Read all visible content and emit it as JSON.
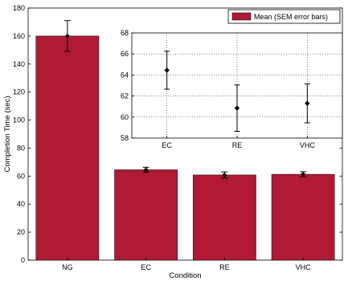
{
  "chart_data": [
    {
      "type": "bar",
      "categories": [
        "NG",
        "EC",
        "RE",
        "VHC"
      ],
      "series": [
        {
          "name": "Mean (SEM error bars)",
          "values": [
            160,
            64.5,
            60.8,
            61.3
          ],
          "error": [
            11,
            1.8,
            2.2,
            1.8
          ]
        }
      ],
      "xlabel": "Condition",
      "ylabel": "Completion Time (sec)",
      "ylim": [
        0,
        180
      ],
      "yticks": [
        0,
        20,
        40,
        60,
        80,
        100,
        120,
        140,
        160,
        180
      ],
      "grid": false,
      "legend": "top-right",
      "bar_color": "#b01a34"
    },
    {
      "type": "scatter",
      "categories": [
        "EC",
        "RE",
        "VHC"
      ],
      "series": [
        {
          "values": [
            64.45,
            60.85,
            61.3
          ],
          "error": [
            1.8,
            2.2,
            1.85
          ]
        }
      ],
      "ylim": [
        58,
        68
      ],
      "yticks": [
        58,
        60,
        62,
        64,
        66,
        68
      ],
      "grid": true
    }
  ]
}
